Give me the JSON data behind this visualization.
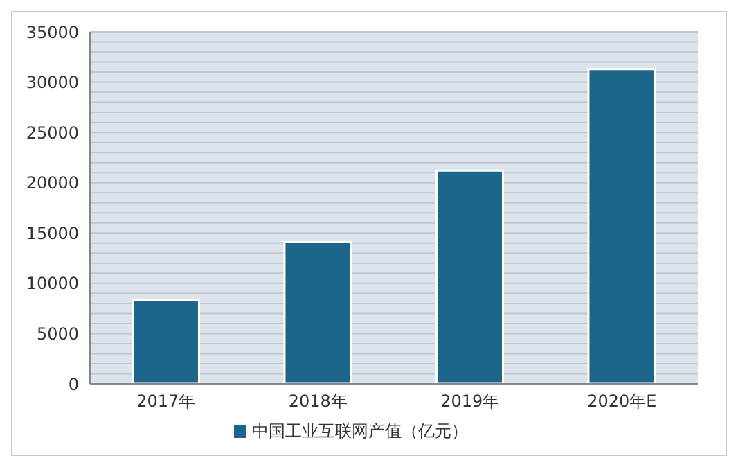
{
  "chart_data": {
    "type": "bar",
    "categories": [
      "2017年",
      "2018年",
      "2019年",
      "2020年E"
    ],
    "series": [
      {
        "name": "中国工业互联网产值（亿元）",
        "color": "#1b6689",
        "values": [
          8300,
          14100,
          21200,
          31300
        ]
      }
    ],
    "ylim": [
      0,
      35000
    ],
    "yticks": [
      0,
      {
        "value": 1000,
        "label": null
      },
      {
        "value": 2000,
        "label": null
      },
      {
        "value": 3000,
        "label": null
      },
      {
        "value": 4000,
        "label": null
      },
      5000,
      {
        "value": 6000,
        "label": null
      },
      {
        "value": 7000,
        "label": null
      },
      {
        "value": 8000,
        "label": null
      },
      {
        "value": 9000,
        "label": null
      },
      10000,
      {
        "value": 11000,
        "label": null
      },
      {
        "value": 12000,
        "label": null
      },
      {
        "value": 13000,
        "label": null
      },
      {
        "value": 14000,
        "label": null
      },
      15000,
      {
        "value": 16000,
        "label": null
      },
      {
        "value": 17000,
        "label": null
      },
      {
        "value": 18000,
        "label": null
      },
      {
        "value": 19000,
        "label": null
      },
      20000,
      {
        "value": 21000,
        "label": null
      },
      {
        "value": 22000,
        "label": null
      },
      {
        "value": 23000,
        "label": null
      },
      {
        "value": 24000,
        "label": null
      },
      25000,
      {
        "value": 26000,
        "label": null
      },
      {
        "value": 27000,
        "label": null
      },
      {
        "value": 28000,
        "label": null
      },
      {
        "value": 29000,
        "label": null
      },
      30000,
      {
        "value": 31000,
        "label": null
      },
      {
        "value": 32000,
        "label": null
      },
      {
        "value": 33000,
        "label": null
      },
      {
        "value": 34000,
        "label": null
      },
      35000
    ],
    "grid": "y",
    "legend": "bottom"
  }
}
